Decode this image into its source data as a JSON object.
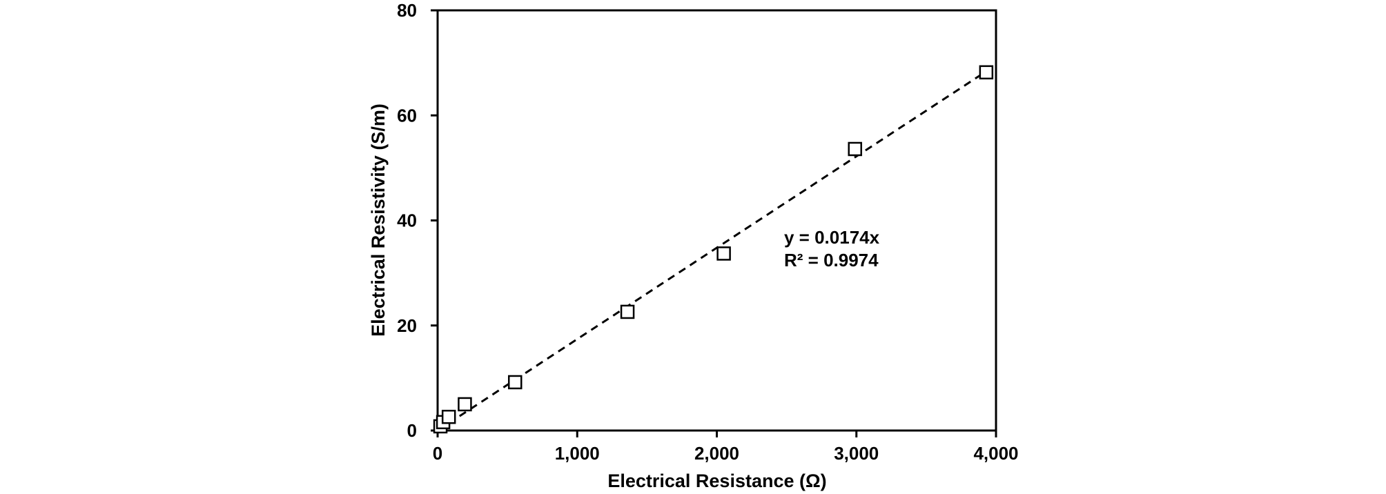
{
  "chart_data": {
    "type": "scatter",
    "xlabel": "Electrical  Resistance (Ω)",
    "ylabel": "Electrical Resistivity (S/m)",
    "xlim": [
      0,
      4000
    ],
    "ylim": [
      0,
      80
    ],
    "x_ticks": [
      0,
      1000,
      2000,
      3000,
      4000
    ],
    "x_tick_labels": [
      "0",
      "1,000",
      "2,000",
      "3,000",
      "4,000"
    ],
    "y_ticks": [
      0,
      20,
      40,
      60,
      80
    ],
    "y_tick_labels": [
      "0",
      "20",
      "40",
      "60",
      "80"
    ],
    "grid": false,
    "series": [
      {
        "marker": "open-square",
        "points": [
          {
            "x": 20,
            "y": 0.8
          },
          {
            "x": 40,
            "y": 1.6
          },
          {
            "x": 80,
            "y": 2.6
          },
          {
            "x": 195,
            "y": 5.0
          },
          {
            "x": 555,
            "y": 9.2
          },
          {
            "x": 1360,
            "y": 22.6
          },
          {
            "x": 2050,
            "y": 33.7
          },
          {
            "x": 2990,
            "y": 53.6
          },
          {
            "x": 3930,
            "y": 68.2
          }
        ]
      }
    ],
    "trendline": {
      "slope": 0.0174,
      "intercept": 0,
      "style": "dashed"
    },
    "annotations": [
      "y = 0.0174x",
      "R² = 0.9974"
    ]
  }
}
